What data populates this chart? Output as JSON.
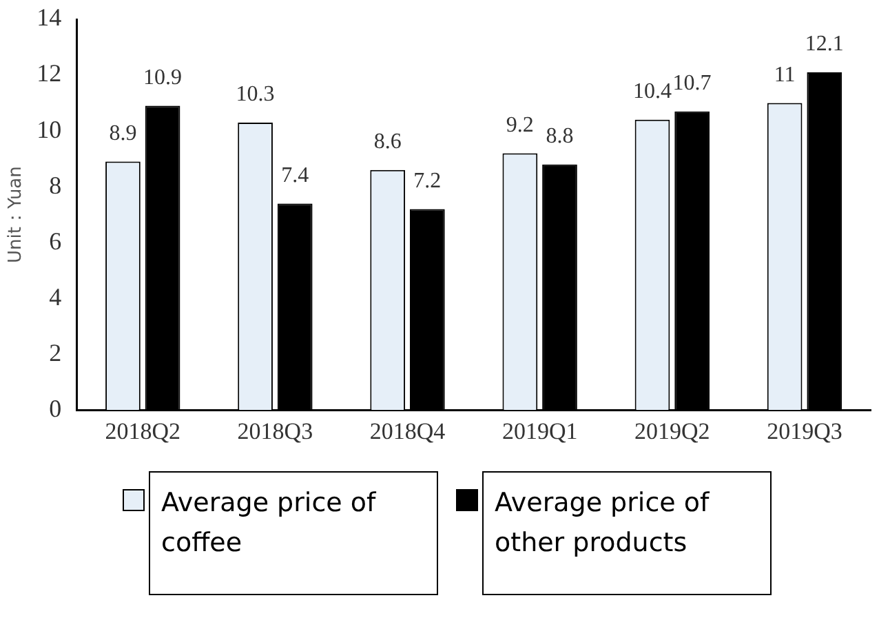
{
  "chart_data": {
    "type": "bar",
    "ylabel": "Unit：Yuan",
    "categories": [
      "2018Q2",
      "2018Q3",
      "2018Q4",
      "2019Q1",
      "2019Q2",
      "2019Q3"
    ],
    "series": [
      {
        "name": "Average price of coffee",
        "color": "#e6eff8",
        "values": [
          8.9,
          10.3,
          8.6,
          9.2,
          10.4,
          11
        ]
      },
      {
        "name": "Average price of other products",
        "color": "#000000",
        "values": [
          10.9,
          7.4,
          7.2,
          8.8,
          10.7,
          12.1
        ]
      }
    ],
    "ylim": [
      0,
      14
    ],
    "yticks": [
      0,
      2,
      4,
      6,
      8,
      10,
      12,
      14
    ],
    "grid": false,
    "legend": "bottom",
    "data_labels": true
  }
}
